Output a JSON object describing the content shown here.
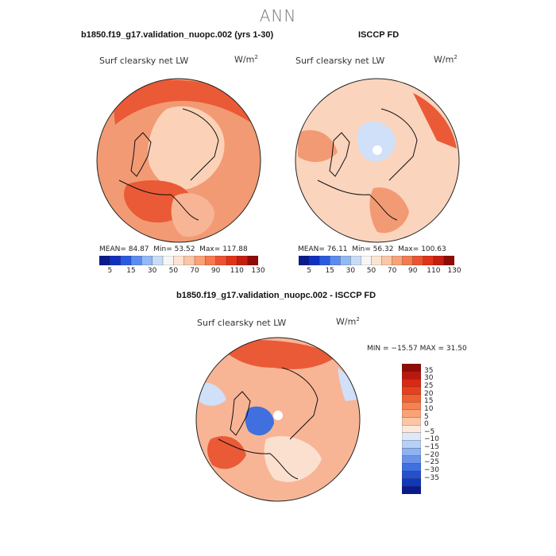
{
  "main_title": "ANN",
  "panels": {
    "left": {
      "title": "b1850.f19_g17.validation_nuopc.002 (yrs 1-30)",
      "field": "Surf clearsky net LW",
      "units_base": "W/m",
      "units_exp": "2",
      "mean_label": "MEAN=",
      "mean": "84.87",
      "min_label": "Min=",
      "min": "53.52",
      "max_label": "Max=",
      "max": "117.88"
    },
    "right": {
      "title": "ISCCP FD",
      "field": "Surf clearsky net LW",
      "units_base": "W/m",
      "units_exp": "2",
      "mean_label": "MEAN=",
      "mean": "76.11",
      "min_label": "Min=",
      "min": "56.32",
      "max_label": "Max=",
      "max": "100.63"
    },
    "diff": {
      "title": "b1850.f19_g17.validation_nuopc.002 - ISCCP FD",
      "field": "Surf clearsky net LW",
      "units_base": "W/m",
      "units_exp": "2",
      "minmax_text": "MIN = −15.57 MAX =  31.50"
    }
  },
  "horizontal_colorbar": {
    "colors": [
      "#0a1a8c",
      "#1030c0",
      "#2a5ae0",
      "#5b8bf0",
      "#93b8f6",
      "#c8dcf8",
      "#f6f6f6",
      "#fde4d2",
      "#fbc6a6",
      "#f9a278",
      "#f57a50",
      "#ee5230",
      "#e03318",
      "#c41e10",
      "#8e0c06"
    ],
    "tick_labels": [
      "5",
      "15",
      "30",
      "50",
      "70",
      "90",
      "110",
      "130"
    ]
  },
  "vertical_colorbar": {
    "colors": [
      "#8e0c06",
      "#b81810",
      "#d82a14",
      "#e8401e",
      "#f06030",
      "#f68250",
      "#f9a278",
      "#fbc6a6",
      "#fde8dc",
      "#dce9fb",
      "#b8d0f6",
      "#8fb2f2",
      "#6a92ea",
      "#4070de",
      "#2450d0",
      "#1238b8",
      "#0a1a8c"
    ],
    "tick_labels": [
      "35",
      "30",
      "25",
      "20",
      "15",
      "10",
      "5",
      "0",
      "−5",
      "−10",
      "−15",
      "−20",
      "−25",
      "−30",
      "−35"
    ]
  },
  "palette": {
    "ocean_left": "#f29a74",
    "land_left": "#fbd2b8",
    "ocean_right": "#fbd4be",
    "land_right": "#fde9dc",
    "ocean_diff": "#f7b596",
    "land_diff": "#fce0cf",
    "cool": "#cfe0f8",
    "hot": "#ea5a36"
  }
}
